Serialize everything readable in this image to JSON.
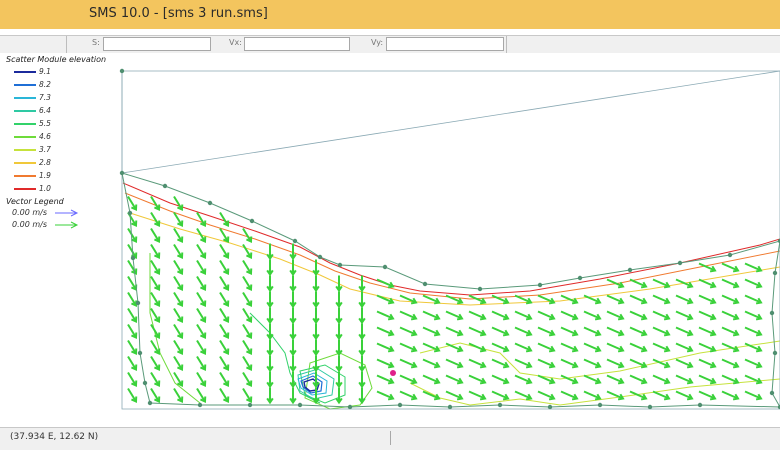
{
  "window": {
    "title": "SMS 10.0 - [sms 3 run.sms]"
  },
  "toolbar": {
    "s_label": "S:",
    "vx_label": "Vx:",
    "vy_label": "Vy:",
    "s_value": "",
    "vx_value": "",
    "vy_value": ""
  },
  "legend": {
    "title": "Scatter Module elevation",
    "items": [
      {
        "value": "9.1",
        "color": "#1b2a9c"
      },
      {
        "value": "8.2",
        "color": "#1f6fd6"
      },
      {
        "value": "7.3",
        "color": "#2ab6d8"
      },
      {
        "value": "6.4",
        "color": "#2ec9a3"
      },
      {
        "value": "5.5",
        "color": "#32d26a"
      },
      {
        "value": "4.6",
        "color": "#6edb3a"
      },
      {
        "value": "3.7",
        "color": "#c6e23c"
      },
      {
        "value": "2.8",
        "color": "#f0c83a"
      },
      {
        "value": "1.9",
        "color": "#f07a30"
      },
      {
        "value": "1.0",
        "color": "#e02a2a"
      }
    ]
  },
  "vector_legend": {
    "title": "Vector Legend",
    "items": [
      {
        "value": "0.00 m/s",
        "color": "#6a6aff"
      },
      {
        "value": "0.00 m/s",
        "color": "#3ad13a"
      }
    ]
  },
  "colors": {
    "arrow": "#3ad13a",
    "mesh_boundary": "#5a9a7a",
    "node": "#4f8f70",
    "marker": "#e0208a"
  },
  "status": {
    "coordinates": "(37.934 E, 12.62 N)"
  }
}
